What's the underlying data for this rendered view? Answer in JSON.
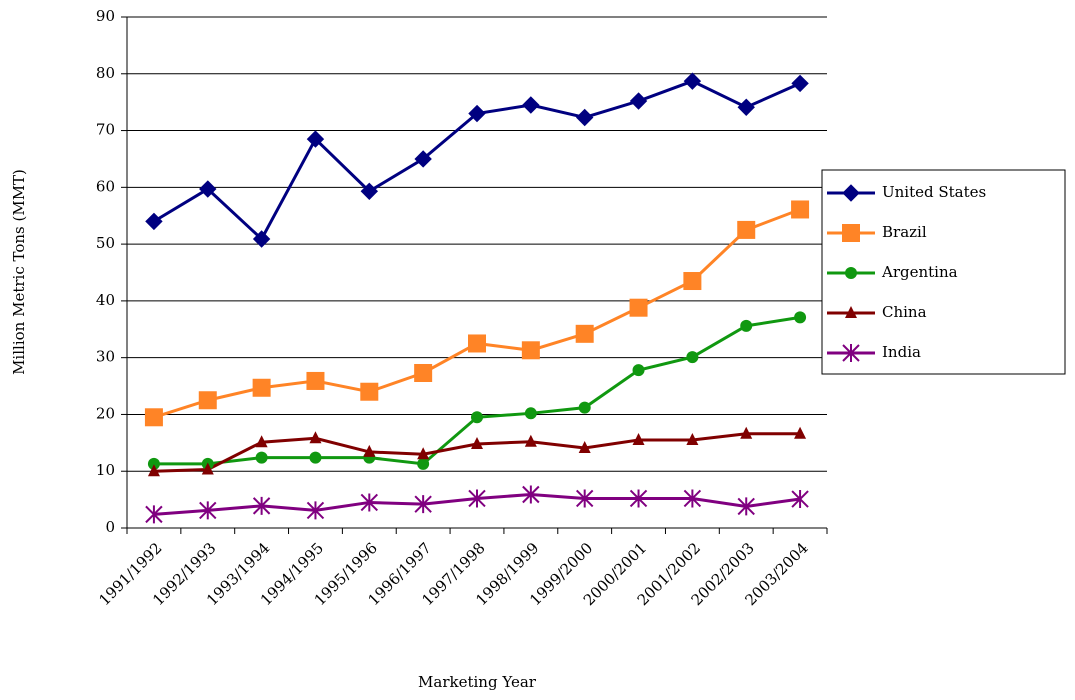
{
  "chart_data": {
    "type": "line",
    "x_label": "Marketing Year",
    "y_label": "Million Metric Tons (MMT)",
    "categories": [
      "1991/1992",
      "1992/1993",
      "1993/1994",
      "1994/1995",
      "1995/1996",
      "1996/1997",
      "1997/1998",
      "1998/1999",
      "1999/2000",
      "2000/2001",
      "2001/2002",
      "2002/2003",
      "2003/2004"
    ],
    "series": [
      {
        "name": "United States",
        "color": "#000080",
        "marker": "diamond",
        "values": [
          54,
          59.7,
          50.9,
          68.5,
          59.3,
          65,
          73,
          74.5,
          72.3,
          75.2,
          78.7,
          74.1,
          78.3
        ]
      },
      {
        "name": "Brazil",
        "color": "#ff8426",
        "marker": "square",
        "values": [
          19.5,
          22.5,
          24.7,
          25.9,
          24,
          27.3,
          32.5,
          31.3,
          34.2,
          38.8,
          43.5,
          52.5,
          56.1
        ]
      },
      {
        "name": "Argentina",
        "color": "#109810",
        "marker": "circle",
        "values": [
          11.3,
          11.3,
          12.4,
          12.4,
          12.4,
          11.3,
          19.5,
          20.2,
          21.2,
          27.8,
          30.1,
          35.6,
          37.1
        ]
      },
      {
        "name": "China",
        "color": "#800000",
        "marker": "triangle",
        "values": [
          10,
          10.3,
          15.1,
          15.8,
          13.4,
          13,
          14.8,
          15.2,
          14.1,
          15.5,
          15.5,
          16.6,
          16.6
        ]
      },
      {
        "name": "India",
        "color": "#800080",
        "marker": "star",
        "values": [
          2.4,
          3.1,
          3.9,
          3.1,
          4.5,
          4.2,
          5.2,
          5.9,
          5.2,
          5.2,
          5.2,
          3.8,
          5.1
        ]
      }
    ],
    "ylim": [
      0,
      90
    ],
    "yticks": [
      0,
      10,
      20,
      30,
      40,
      50,
      60,
      70,
      80,
      90
    ],
    "grid": true,
    "legend": "right"
  }
}
